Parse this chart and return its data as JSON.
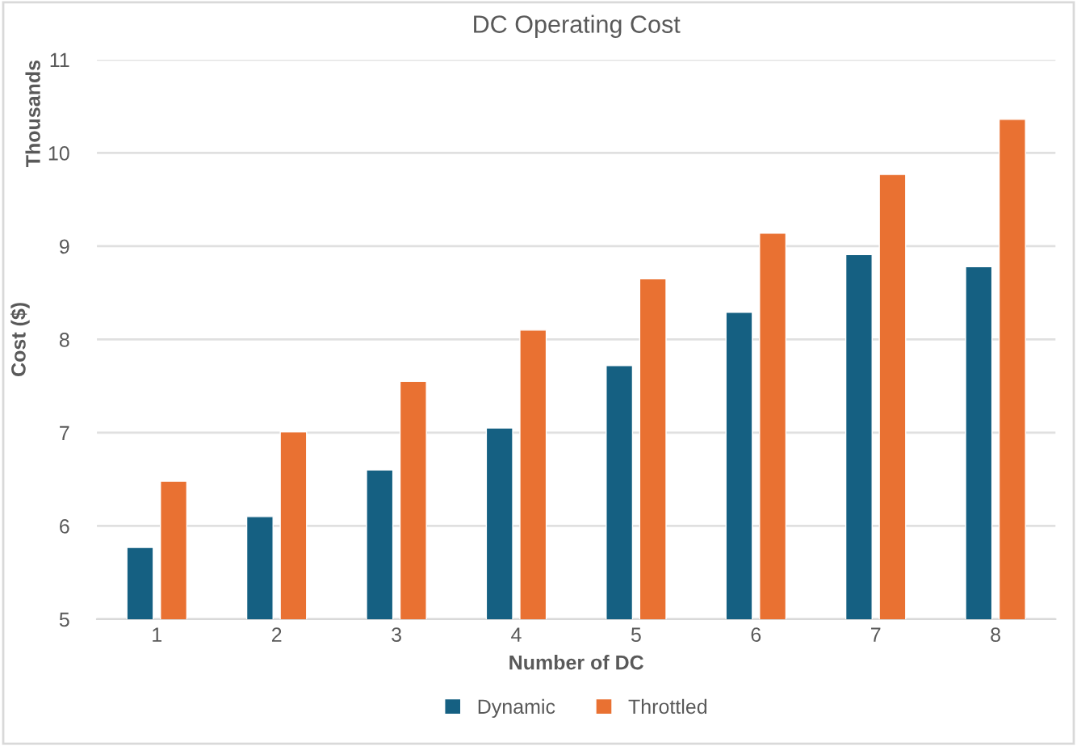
{
  "chart_data": {
    "type": "bar",
    "title": "DC Operating Cost",
    "xlabel": "Number of DC",
    "ylabel": "Cost ($)",
    "annotations": [
      "Thousands"
    ],
    "categories": [
      "1",
      "2",
      "3",
      "4",
      "5",
      "6",
      "7",
      "8"
    ],
    "series": [
      {
        "name": "Dynamic",
        "color": "#156082",
        "values": [
          5.77,
          6.1,
          6.6,
          7.05,
          7.72,
          8.29,
          8.91,
          8.78
        ]
      },
      {
        "name": "Throttled",
        "color": "#e97132",
        "values": [
          6.48,
          7.01,
          7.55,
          8.1,
          8.65,
          9.14,
          9.77,
          10.36
        ]
      }
    ],
    "ylim": [
      5,
      11
    ],
    "yticks": [
      5,
      6,
      7,
      8,
      9,
      10,
      11
    ],
    "grid": "y",
    "legend": "bottom"
  }
}
